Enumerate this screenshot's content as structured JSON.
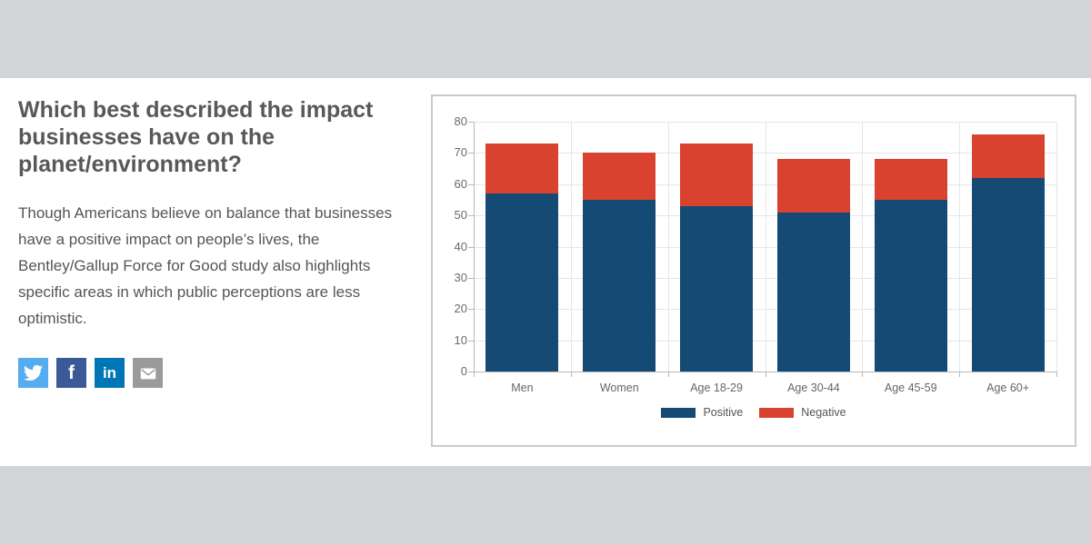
{
  "page": {
    "band_color": "#d2d4d7",
    "background": "#ffffff"
  },
  "article": {
    "title": "Which best described the impact businesses have on the planet/environment?",
    "description": "Though Americans believe on balance that businesses have a positive impact on people’s lives, the Bentley/Gallup Force for Good study also highlights specific areas in which public perceptions are less optimistic.",
    "share_buttons": [
      {
        "name": "twitter",
        "icon": "twitter-bird-icon",
        "color": "#55acee"
      },
      {
        "name": "facebook",
        "icon": "facebook-f-icon",
        "color": "#3b5998"
      },
      {
        "name": "linkedin",
        "icon": "linkedin-in-icon",
        "color": "#0077b5"
      },
      {
        "name": "email",
        "icon": "envelope-icon",
        "color": "#9a9a9a"
      }
    ]
  },
  "chart_data": {
    "type": "bar",
    "stacked": true,
    "categories": [
      "Men",
      "Women",
      "Age 18-29",
      "Age 30-44",
      "Age 45-59",
      "Age 60+"
    ],
    "series": [
      {
        "name": "Positive",
        "color": "#144a73",
        "values": [
          57,
          55,
          53,
          51,
          55,
          62
        ]
      },
      {
        "name": "Negative",
        "color": "#d8422f",
        "values": [
          16,
          15,
          20,
          17,
          13,
          14
        ]
      }
    ],
    "totals": [
      73,
      70,
      73,
      68,
      68,
      76
    ],
    "ylim": [
      0,
      80
    ],
    "ytick_step": 10,
    "grid": true,
    "legend_position": "bottom",
    "colors": {
      "gridline": "#e6e6e6",
      "axis": "#b8b8b8",
      "tick_label": "#6b6b6b"
    }
  }
}
